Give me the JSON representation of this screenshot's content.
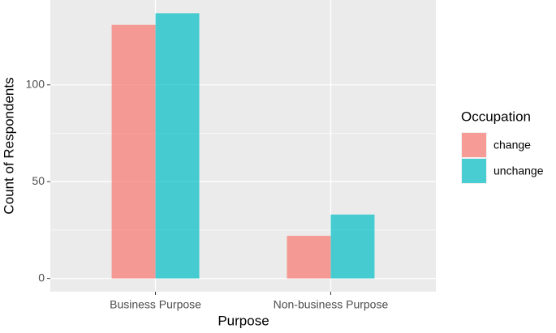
{
  "chart_data": {
    "type": "bar",
    "x_label": "Purpose",
    "y_label": "Count of Respondents",
    "categories": [
      "Business Purpose",
      "Non-business Purpose"
    ],
    "series": [
      {
        "name": "change",
        "color": "#F8766D",
        "values": [
          131,
          22
        ]
      },
      {
        "name": "unchange",
        "color": "#00BFC4",
        "values": [
          137,
          33
        ]
      }
    ],
    "legend_title": "Occupation",
    "legend_position": "right",
    "ylim": [
      -6.85,
      143.85
    ],
    "yticks": [
      0,
      50,
      100
    ],
    "grid": true
  }
}
